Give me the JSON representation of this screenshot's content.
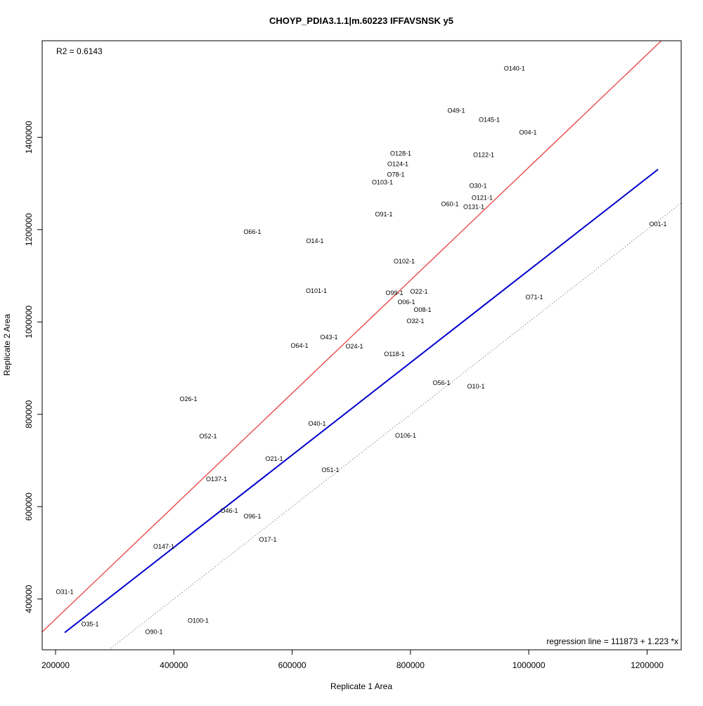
{
  "chart_data": {
    "type": "scatter",
    "title": "CHOYP_PDIA3.1.1|m.60223 IFFAVSNSK y5",
    "xlabel": "Replicate 1 Area",
    "ylabel": "Replicate 2 Area",
    "xlim": [
      177400,
      1257700
    ],
    "ylim": [
      290000,
      1609000
    ],
    "xticks": [
      200000,
      400000,
      600000,
      800000,
      1000000,
      1200000
    ],
    "yticks": [
      400000,
      600000,
      800000,
      1000000,
      1200000,
      1400000
    ],
    "xtick_labels": [
      "200000",
      "400000",
      "600000",
      "800000",
      "1000000",
      "1200000"
    ],
    "ytick_labels": [
      "400000",
      "600000",
      "800000",
      "1000000",
      "1200000",
      "1400000"
    ],
    "grid": false,
    "r2_text": "R2 = 0.6143",
    "regression_text": "regression line = 111873 + 1.223 *x",
    "regression": {
      "intercept": 111873,
      "slope": 1.223,
      "color": "#e8403f"
    },
    "offset_line": {
      "intercept": 111873,
      "slope": 1.0,
      "color": "#0000cc"
    },
    "identity_line": {
      "intercept": 0,
      "slope": 1.0,
      "color": "#555555"
    },
    "points": [
      {
        "label": "O140-1",
        "x": 975800,
        "y": 1549000
      },
      {
        "label": "O49-1",
        "x": 877400,
        "y": 1457800
      },
      {
        "label": "O145-1",
        "x": 933200,
        "y": 1438000
      },
      {
        "label": "O04-1",
        "x": 998600,
        "y": 1410700
      },
      {
        "label": "O128-1",
        "x": 783500,
        "y": 1365000
      },
      {
        "label": "O122-1",
        "x": 923700,
        "y": 1362000
      },
      {
        "label": "O124-1",
        "x": 778700,
        "y": 1342300
      },
      {
        "label": "O78-1",
        "x": 775200,
        "y": 1319500
      },
      {
        "label": "O103-1",
        "x": 755000,
        "y": 1305800
      },
      {
        "label": "O30-1",
        "x": 914200,
        "y": 1295200
      },
      {
        "label": "O121-1",
        "x": 921300,
        "y": 1269300
      },
      {
        "label": "O60-1",
        "x": 866700,
        "y": 1255600
      },
      {
        "label": "O131-1",
        "x": 903500,
        "y": 1251100
      },
      {
        "label": "O91-1",
        "x": 755000,
        "y": 1232900
      },
      {
        "label": "O01-1",
        "x": 1218500,
        "y": 1211600
      },
      {
        "label": "O66-1",
        "x": 532800,
        "y": 1194900
      },
      {
        "label": "O14-1",
        "x": 638500,
        "y": 1175100
      },
      {
        "label": "O102-1",
        "x": 789400,
        "y": 1131000
      },
      {
        "label": "O101-1",
        "x": 640900,
        "y": 1067200
      },
      {
        "label": "O22-1",
        "x": 814400,
        "y": 1065700
      },
      {
        "label": "O71-1",
        "x": 1009300,
        "y": 1053500
      },
      {
        "label": "O99-1",
        "x": 778700,
        "y": 1049000
      },
      {
        "label": "O06-1",
        "x": 793000,
        "y": 1042900
      },
      {
        "label": "O08-1",
        "x": 818000,
        "y": 1038400
      },
      {
        "label": "O32-1",
        "x": 808400,
        "y": 1001900
      },
      {
        "label": "O43-1",
        "x": 662300,
        "y": 966900
      },
      {
        "label": "O64-1",
        "x": 612400,
        "y": 948600
      },
      {
        "label": "O24-1",
        "x": 705100,
        "y": 947100
      },
      {
        "label": "O118-1",
        "x": 772800,
        "y": 930400
      },
      {
        "label": "O56-1",
        "x": 852400,
        "y": 868100
      },
      {
        "label": "O10-1",
        "x": 910700,
        "y": 860500
      },
      {
        "label": "O26-1",
        "x": 424600,
        "y": 833100
      },
      {
        "label": "O40-1",
        "x": 642100,
        "y": 780000
      },
      {
        "label": "O106-1",
        "x": 791800,
        "y": 754100
      },
      {
        "label": "O52-1",
        "x": 457900,
        "y": 752600
      },
      {
        "label": "O21-1",
        "x": 569600,
        "y": 704000
      },
      {
        "label": "O51-1",
        "x": 664700,
        "y": 679600
      },
      {
        "label": "O137-1",
        "x": 472100,
        "y": 659900
      },
      {
        "label": "O46-1",
        "x": 493500,
        "y": 591500
      },
      {
        "label": "O96-1",
        "x": 532800,
        "y": 579300
      },
      {
        "label": "O17-1",
        "x": 558900,
        "y": 529200
      },
      {
        "label": "O147-1",
        "x": 383000,
        "y": 514000
      },
      {
        "label": "O31-1",
        "x": 215400,
        "y": 415200
      },
      {
        "label": "O100-1",
        "x": 441200,
        "y": 352900
      },
      {
        "label": "O35-1",
        "x": 258200,
        "y": 345300
      },
      {
        "label": "O90-1",
        "x": 366400,
        "y": 328600
      }
    ]
  }
}
